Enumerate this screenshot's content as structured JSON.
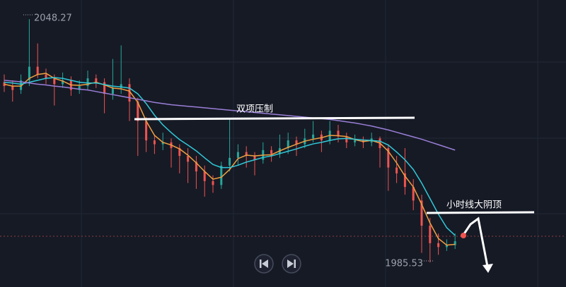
{
  "chart_data": {
    "type": "candlestick",
    "ylim": [
      1979.2,
      2053.2
    ],
    "up_color": "#26a69a",
    "down_color": "#ef5350",
    "candles": {
      "open": [
        2032.0,
        2031.0,
        2030.0,
        2032.5,
        2036.0,
        2034.0,
        2033.0,
        2031.5,
        2032.5,
        2030.0,
        2031.0,
        2033.0,
        2032.0,
        2029.0,
        2030.5,
        2031.5,
        2027.0,
        2022.0,
        2017.0,
        2016.0,
        2016.5,
        2015.0,
        2013.0,
        2011.5,
        2009.0,
        2006.5,
        2005.5,
        2010.5,
        2012.5,
        2014.0,
        2013.0,
        2012.0,
        2014.5,
        2013.5,
        2015.0,
        2017.0,
        2016.0,
        2017.5,
        2018.5,
        2017.0,
        2019.5,
        2018.0,
        2016.5,
        2017.0,
        2016.5,
        2017.5,
        2015.0,
        2010.0,
        2008.5,
        2005.0,
        2001.5,
        1995.0,
        1990.5,
        1989.5,
        1990.0
      ],
      "high": [
        2034,
        2032.5,
        2034,
        2048.27,
        2042,
        2035.5,
        2034,
        2034.5,
        2033.5,
        2032.5,
        2035,
        2034,
        2033,
        2038,
        2041.5,
        2033,
        2028,
        2023,
        2018.5,
        2019,
        2017.5,
        2016,
        2015,
        2013,
        2010.5,
        2008,
        2011.5,
        2022.5,
        2016,
        2015.5,
        2014,
        2016.5,
        2015.5,
        2018.5,
        2019,
        2018,
        2020,
        2022,
        2019.5,
        2022,
        2021,
        2019,
        2018.5,
        2018,
        2019,
        2018,
        2016,
        2013,
        2015,
        2007,
        2003,
        1997,
        1993,
        1991.5,
        1993
      ],
      "low": [
        2029.5,
        2027,
        2029,
        2031,
        2033,
        2031.5,
        2026,
        2030.5,
        2028.5,
        2029,
        2030,
        2030.5,
        2024,
        2027.5,
        2029,
        2022,
        2013,
        2014,
        2013.5,
        2014.5,
        2010,
        2008.5,
        2006,
        2004.5,
        2002.5,
        2003.5,
        2004.5,
        2009,
        2010.5,
        2010,
        2008,
        2011,
        2011.5,
        2012.5,
        2013.5,
        2013,
        2015,
        2016.5,
        2014,
        2016,
        2016.5,
        2015,
        2015.5,
        2015,
        2015.5,
        2010,
        2004,
        2006,
        2003,
        1999,
        1988,
        1985.53,
        1987.5,
        1988.5,
        1989
      ],
      "close": [
        2031,
        2030,
        2032.5,
        2036,
        2034,
        2033,
        2031.5,
        2032.5,
        2030,
        2031,
        2033,
        2032,
        2029,
        2030.5,
        2031.5,
        2027,
        2022,
        2017,
        2016,
        2016.5,
        2015,
        2013,
        2011.5,
        2009,
        2006.5,
        2005.5,
        2010.5,
        2012.5,
        2014,
        2013,
        2012,
        2014.5,
        2013.5,
        2015,
        2017,
        2016,
        2017.5,
        2018.5,
        2017,
        2019.5,
        2018,
        2016.5,
        2017,
        2016.5,
        2017.5,
        2015,
        2010,
        2008.5,
        2005,
        2001.5,
        1995,
        1990.5,
        1989.5,
        1990,
        1991
      ]
    },
    "lines": [
      {
        "color": "#f0a040",
        "values": [
          2031.5,
          2031,
          2031,
          2033,
          2034,
          2034.3,
          2033,
          2032.3,
          2031.3,
          2031.2,
          2031.5,
          2032,
          2031.3,
          2030.5,
          2030.3,
          2029.7,
          2026.8,
          2022,
          2018.3,
          2016.5,
          2015.8,
          2014.8,
          2013.2,
          2011.2,
          2009,
          2007,
          2007.5,
          2009.5,
          2012.3,
          2013.2,
          2013,
          2013.2,
          2013.3,
          2014.3,
          2015.2,
          2016,
          2016.8,
          2017.3,
          2017.7,
          2018.3,
          2018.2,
          2018,
          2017.2,
          2016.7,
          2017,
          2016.3,
          2014.2,
          2011.2,
          2007.8,
          2005,
          2000.5,
          1995.7,
          1991.7,
          1990,
          1990.2
        ]
      },
      {
        "color": "#30c8d8",
        "values": [
          2032,
          2031.8,
          2031.5,
          2032,
          2032.5,
          2033,
          2033.2,
          2033,
          2032.5,
          2032,
          2031.8,
          2031.8,
          2031.4,
          2031,
          2030.8,
          2030.5,
          2029,
          2026.5,
          2023.5,
          2021,
          2019,
          2017.2,
          2015.8,
          2014.3,
          2012.5,
          2010.8,
          2010,
          2010,
          2010.6,
          2011.4,
          2012,
          2012.6,
          2013,
          2013.6,
          2014.2,
          2014.8,
          2015.5,
          2016.1,
          2016.5,
          2017,
          2017.4,
          2017.5,
          2017.3,
          2017.1,
          2017,
          2016.8,
          2015.8,
          2014,
          2012,
          2009.5,
          2006,
          2002,
          1998,
          1994.5,
          1992.5
        ]
      },
      {
        "color": "#9a7fd8",
        "values": [
          2032.5,
          2032.3,
          2032.1,
          2031.8,
          2031.5,
          2031.3,
          2031.0,
          2030.8,
          2030.5,
          2030.2,
          2030,
          2029.6,
          2029.2,
          2028.8,
          2028.4,
          2028,
          2027.6,
          2027.2,
          2026.8,
          2026.5,
          2026.2,
          2026,
          2025.8,
          2025.6,
          2025.4,
          2025.2,
          2025,
          2024.8,
          2024.6,
          2024.4,
          2024.2,
          2024,
          2023.8,
          2023.6,
          2023.4,
          2023.2,
          2023,
          2022.8,
          2022.6,
          2022.4,
          2022.1,
          2021.8,
          2021.5,
          2021.1,
          2020.7,
          2020.2,
          2019.7,
          2019.1,
          2018.5,
          2017.9,
          2017.3,
          2016.6,
          2015.9,
          2015.2,
          2014.5
        ]
      }
    ],
    "max_label": 2048.27,
    "min_label": 1985.53,
    "annotations": [
      "双项压制",
      "小时线大阴顶"
    ]
  }
}
